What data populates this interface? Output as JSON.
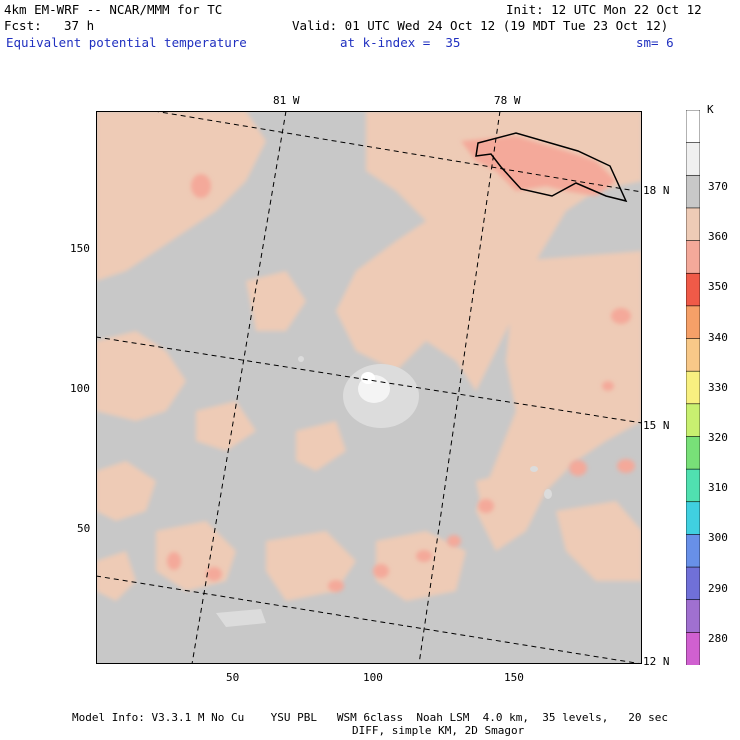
{
  "header": {
    "model": "4km EM-WRF -- NCAR/MMM for TC",
    "init": "Init: 12 UTC Mon 22 Oct 12",
    "fcst_label": "Fcst:",
    "fcst_value": "37 h",
    "valid": "Valid: 01 UTC Wed 24 Oct 12 (19 MDT Tue 23 Oct 12)",
    "field": "Equivalent potential temperature",
    "level": "at k-index =  35",
    "smoothing": "sm= 6"
  },
  "map": {
    "lon_labels": [
      "81 W",
      "78 W"
    ],
    "lat_labels": [
      "18 N",
      "15 N",
      "12 N"
    ],
    "x_ticks": [
      "50",
      "100",
      "150"
    ],
    "y_ticks": [
      "50",
      "100",
      "150"
    ],
    "colors": {
      "background": "#c8c8c8",
      "c350": "#eecbb6",
      "c345": "#f4a99a",
      "c360": "#dcdcdc",
      "c370": "#f4f4f4"
    }
  },
  "colorbar": {
    "unit": "K",
    "labels": [
      "370",
      "360",
      "350",
      "340",
      "330",
      "320",
      "310",
      "300",
      "290",
      "280"
    ],
    "colors": [
      "#ffffff",
      "#f0f0f0",
      "#c8c8c8",
      "#eecbb6",
      "#f4a99a",
      "#f05a48",
      "#f6a068",
      "#f8c888",
      "#f8f080",
      "#c8f070",
      "#78e078",
      "#50e0b0",
      "#40d0e0",
      "#6890e8",
      "#7070d8",
      "#a070d0",
      "#d060d0"
    ]
  },
  "footer": {
    "line1": "Model Info: V3.3.1 M No Cu    YSU PBL   WSM 6class  Noah LSM  4.0 km,  35 levels,   20 sec",
    "line2": "DIFF, simple KM, 2D Smagor"
  }
}
